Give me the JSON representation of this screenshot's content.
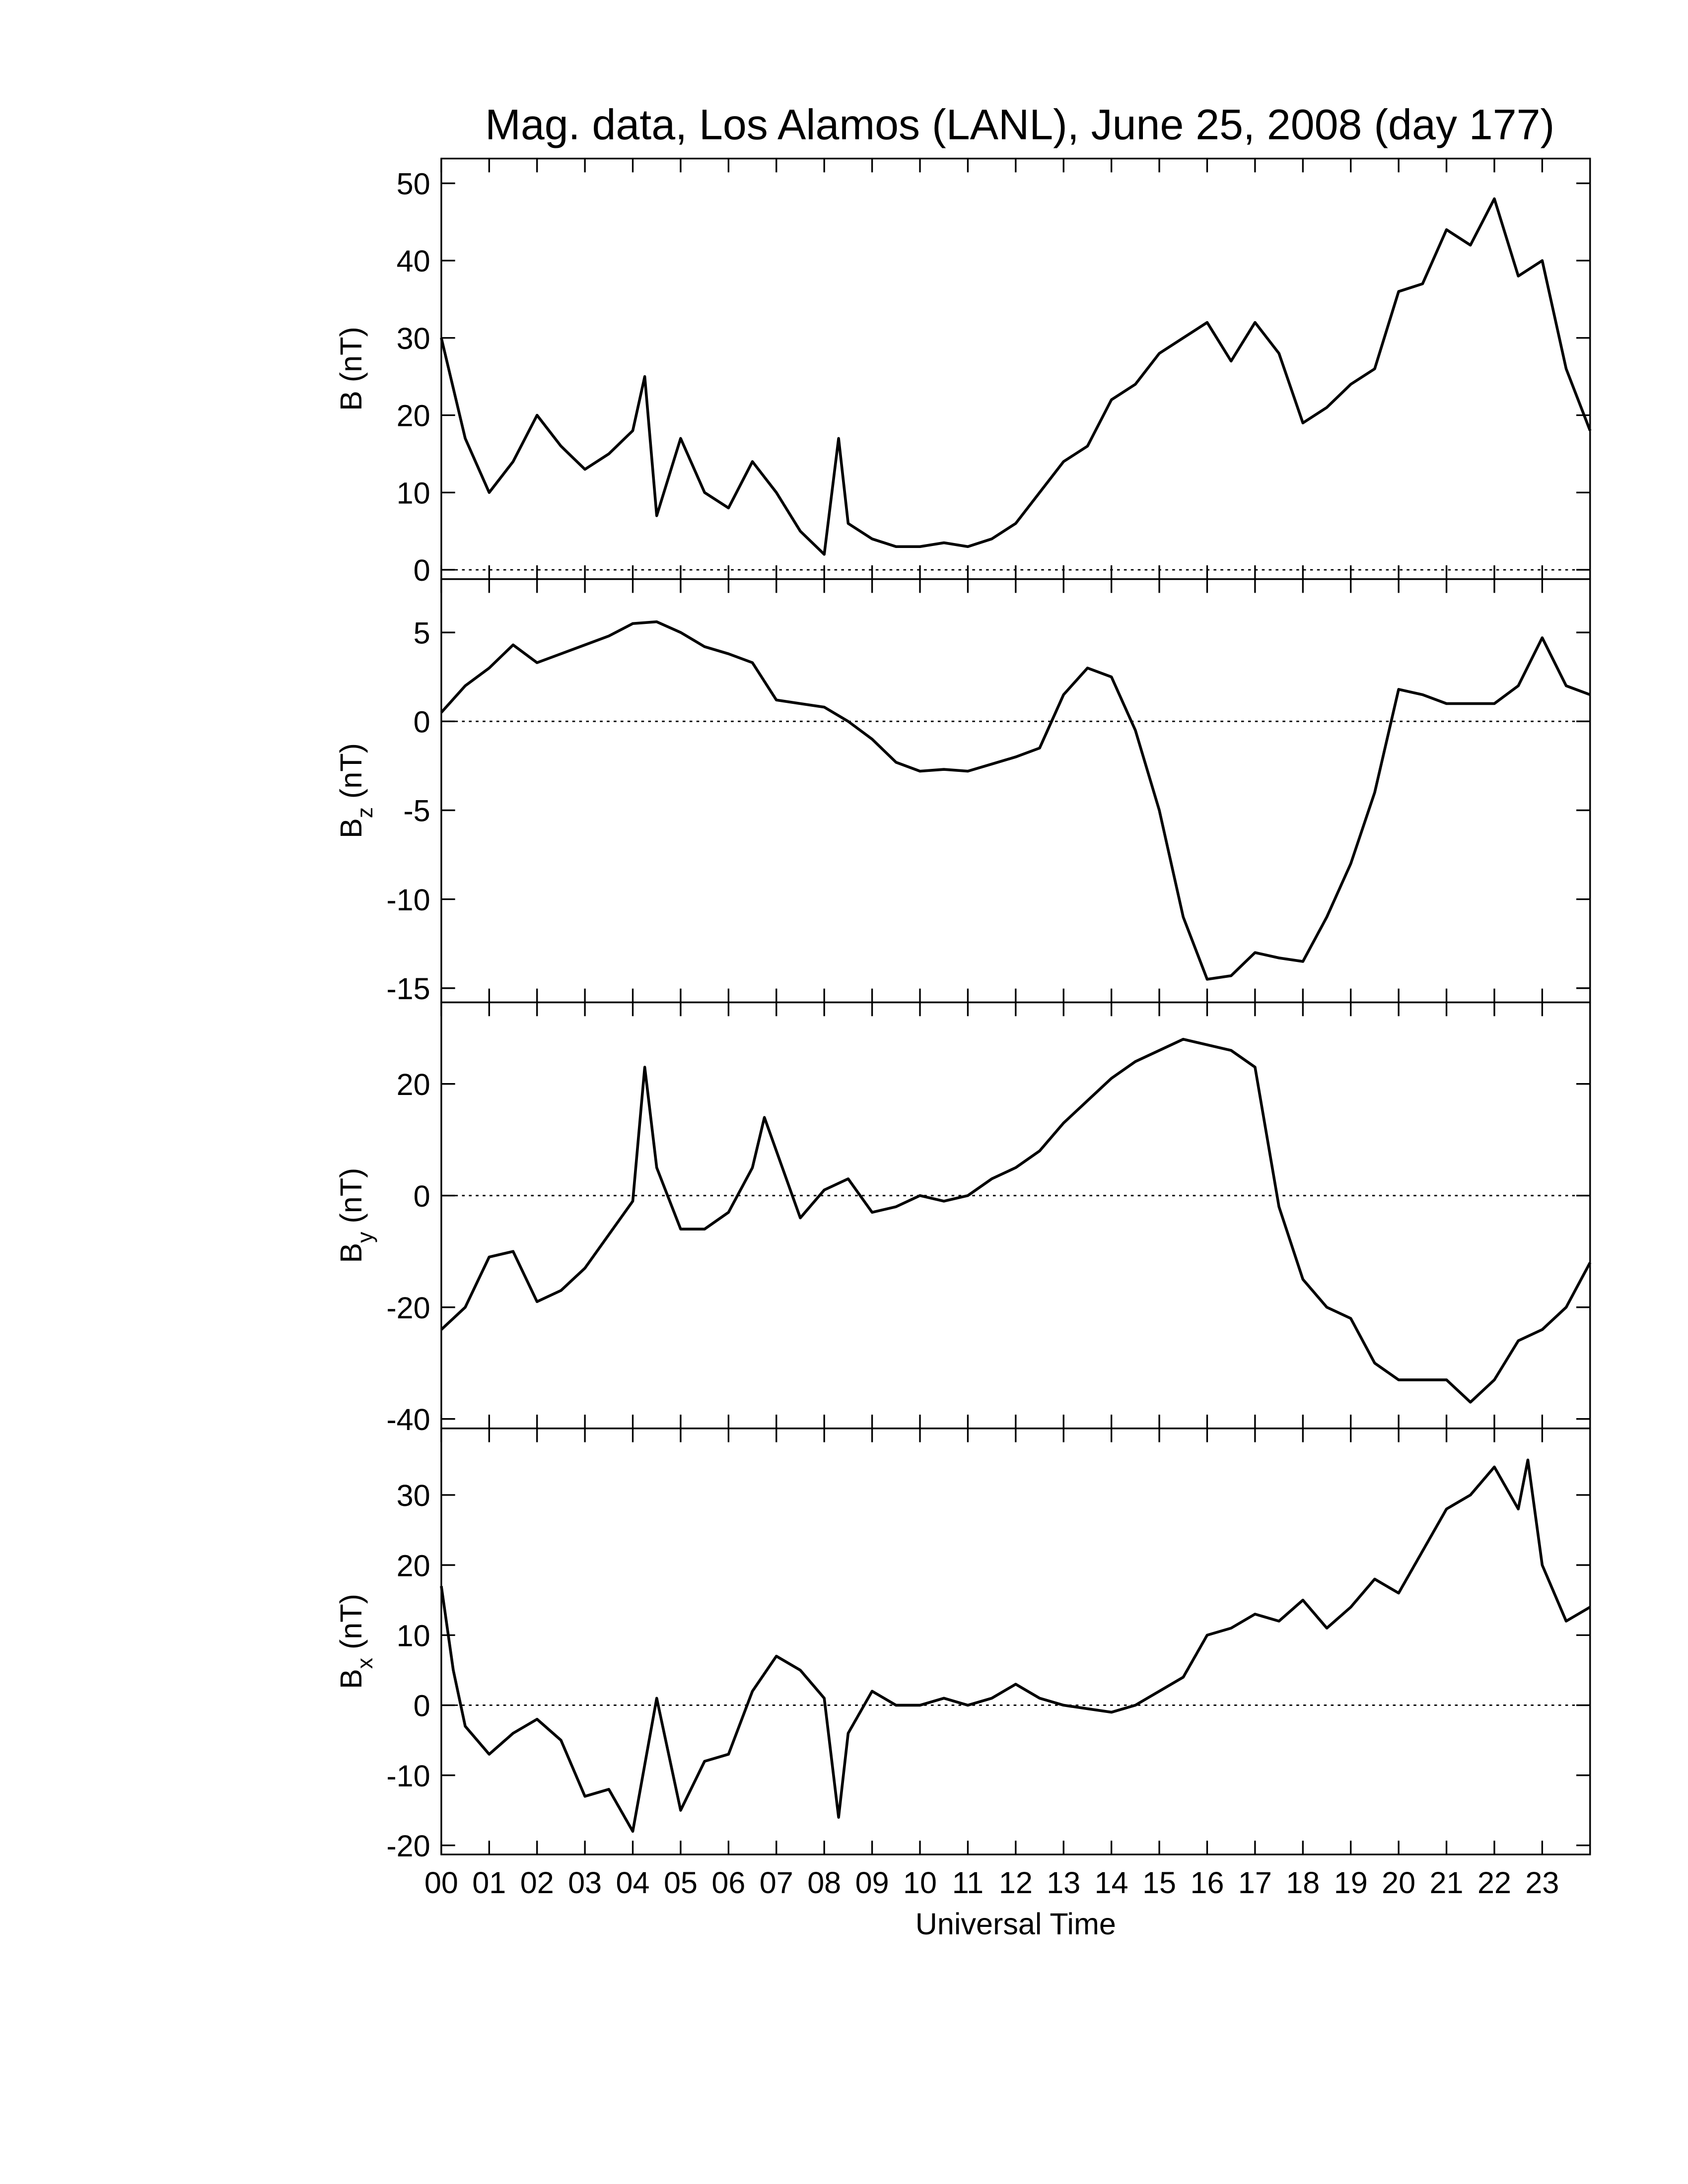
{
  "chart_data": [
    {
      "type": "line",
      "title": "Mag. data, Los Alamos (LANL), June 25, 2008 (day 177)",
      "ylabel": {
        "symbol": "B",
        "unit": "(nT)"
      },
      "x": [
        0,
        0.5,
        1,
        1.5,
        2,
        2.5,
        3,
        3.5,
        4,
        4.25,
        4.5,
        5,
        5.5,
        6,
        6.5,
        7,
        7.5,
        8,
        8.3,
        8.5,
        9,
        9.5,
        10,
        10.5,
        11,
        11.5,
        12,
        12.5,
        13,
        13.5,
        14,
        14.5,
        15,
        15.5,
        16,
        16.5,
        17,
        17.5,
        18,
        18.5,
        19,
        19.5,
        20,
        20.5,
        21,
        21.5,
        22,
        22.5,
        23,
        23.5,
        24
      ],
      "values": [
        30,
        17,
        10,
        14,
        20,
        16,
        13,
        15,
        18,
        25,
        7,
        17,
        10,
        8,
        14,
        10,
        5,
        2,
        17,
        6,
        4,
        3,
        3,
        3.5,
        3,
        4,
        6,
        10,
        14,
        16,
        22,
        24,
        28,
        30,
        32,
        27,
        32,
        28,
        19,
        21,
        24,
        26,
        36,
        37,
        44,
        42,
        48,
        38,
        40,
        26,
        18
      ],
      "color": "#000000",
      "xlim": [
        0,
        24
      ],
      "ylim": [
        -1.2,
        53.2
      ],
      "yticks": [
        0,
        10,
        20,
        30,
        40,
        50
      ],
      "xticks": [
        0,
        1,
        2,
        3,
        4,
        5,
        6,
        7,
        8,
        9,
        10,
        11,
        12,
        13,
        14,
        15,
        16,
        17,
        18,
        19,
        20,
        21,
        22,
        23
      ],
      "hlines": [
        0
      ]
    },
    {
      "type": "line",
      "ylabel": {
        "symbol": "B",
        "subscript": "z",
        "unit": "(nT)"
      },
      "x": [
        0,
        0.5,
        1,
        1.5,
        2,
        2.5,
        3,
        3.5,
        4,
        4.5,
        5,
        5.5,
        6,
        6.5,
        7,
        7.5,
        8,
        8.5,
        9,
        9.5,
        10,
        10.5,
        11,
        11.5,
        12,
        12.5,
        13,
        13.5,
        14,
        14.5,
        15,
        15.5,
        16,
        16.5,
        17,
        17.5,
        18,
        18.5,
        19,
        19.5,
        20,
        20.5,
        21,
        21.5,
        22,
        22.5,
        23,
        23.5,
        24
      ],
      "values": [
        0.5,
        2,
        3,
        4.3,
        3.3,
        3.8,
        4.3,
        4.8,
        5.5,
        5.6,
        5,
        4.2,
        3.8,
        3.3,
        1.2,
        1,
        0.8,
        0,
        -1,
        -2.3,
        -2.8,
        -2.7,
        -2.8,
        -2.4,
        -2,
        -1.5,
        1.5,
        3,
        2.5,
        -0.5,
        -5,
        -11,
        -14.5,
        -14.3,
        -13,
        -13.3,
        -13.5,
        -11,
        -8,
        -4,
        1.8,
        1.5,
        1,
        1,
        1,
        2,
        4.7,
        2,
        1.5
      ],
      "color": "#000000",
      "xlim": [
        0,
        24
      ],
      "ylim": [
        -15.8,
        8.0
      ],
      "yticks": [
        -15,
        -10,
        -5,
        0,
        5
      ],
      "xticks": [
        0,
        1,
        2,
        3,
        4,
        5,
        6,
        7,
        8,
        9,
        10,
        11,
        12,
        13,
        14,
        15,
        16,
        17,
        18,
        19,
        20,
        21,
        22,
        23
      ],
      "hlines": [
        0
      ]
    },
    {
      "type": "line",
      "ylabel": {
        "symbol": "B",
        "subscript": "y",
        "unit": "(nT)"
      },
      "x": [
        0,
        0.5,
        1,
        1.5,
        2,
        2.5,
        3,
        3.5,
        4,
        4.25,
        4.5,
        5,
        5.5,
        6,
        6.5,
        6.75,
        7,
        7.5,
        8,
        8.5,
        9,
        9.5,
        10,
        10.5,
        11,
        11.5,
        12,
        12.5,
        13,
        13.5,
        14,
        14.5,
        15,
        15.5,
        16,
        16.5,
        17,
        17.5,
        18,
        18.5,
        19,
        19.5,
        20,
        20.5,
        21,
        21.5,
        22,
        22.5,
        23,
        23.5,
        24
      ],
      "values": [
        -24,
        -20,
        -11,
        -10,
        -19,
        -17,
        -13,
        -7,
        -1,
        23,
        5,
        -6,
        -6,
        -3,
        5,
        14,
        8,
        -4,
        1,
        3,
        -3,
        -2,
        0,
        -1,
        0,
        3,
        5,
        8,
        13,
        17,
        21,
        24,
        26,
        28,
        27,
        26,
        23,
        -2,
        -15,
        -20,
        -22,
        -30,
        -33,
        -33,
        -33,
        -37,
        -33,
        -26,
        -24,
        -20,
        -12
      ],
      "color": "#000000",
      "xlim": [
        0,
        24
      ],
      "ylim": [
        -41.7,
        34.6
      ],
      "yticks": [
        -40,
        -20,
        0,
        20
      ],
      "xticks": [
        0,
        1,
        2,
        3,
        4,
        5,
        6,
        7,
        8,
        9,
        10,
        11,
        12,
        13,
        14,
        15,
        16,
        17,
        18,
        19,
        20,
        21,
        22,
        23
      ],
      "hlines": [
        0
      ]
    },
    {
      "type": "line",
      "xlabel": "Universal Time",
      "ylabel": {
        "symbol": "B",
        "subscript": "x",
        "unit": "(nT)"
      },
      "x": [
        0,
        0.25,
        0.5,
        1,
        1.5,
        2,
        2.5,
        3,
        3.5,
        4,
        4.5,
        5,
        5.5,
        6,
        6.5,
        7,
        7.5,
        8,
        8.3,
        8.5,
        9,
        9.5,
        10,
        10.5,
        11,
        11.5,
        12,
        12.5,
        13,
        13.5,
        14,
        14.5,
        15,
        15.5,
        16,
        16.5,
        17,
        17.5,
        18,
        18.5,
        19,
        19.5,
        20,
        20.5,
        21,
        21.5,
        22,
        22.5,
        22.7,
        23,
        23.5,
        24
      ],
      "values": [
        17,
        5,
        -3,
        -7,
        -4,
        -2,
        -5,
        -13,
        -12,
        -18,
        1,
        -15,
        -8,
        -7,
        2,
        7,
        5,
        1,
        -16,
        -4,
        2,
        0,
        0,
        1,
        0,
        1,
        3,
        1,
        0,
        -0.5,
        -1,
        0,
        2,
        4,
        10,
        11,
        13,
        12,
        15,
        11,
        14,
        18,
        16,
        22,
        28,
        30,
        34,
        28,
        35,
        20,
        12,
        14
      ],
      "color": "#000000",
      "xlim": [
        0,
        24
      ],
      "ylim": [
        -21.3,
        39.5
      ],
      "yticks": [
        -20,
        -10,
        0,
        10,
        20,
        30
      ],
      "xticks": [
        {
          "value": 0,
          "label": "00"
        },
        {
          "value": 1,
          "label": "01"
        },
        {
          "value": 2,
          "label": "02"
        },
        {
          "value": 3,
          "label": "03"
        },
        {
          "value": 4,
          "label": "04"
        },
        {
          "value": 5,
          "label": "05"
        },
        {
          "value": 6,
          "label": "06"
        },
        {
          "value": 7,
          "label": "07"
        },
        {
          "value": 8,
          "label": "08"
        },
        {
          "value": 9,
          "label": "09"
        },
        {
          "value": 10,
          "label": "10"
        },
        {
          "value": 11,
          "label": "11"
        },
        {
          "value": 12,
          "label": "12"
        },
        {
          "value": 13,
          "label": "13"
        },
        {
          "value": 14,
          "label": "14"
        },
        {
          "value": 15,
          "label": "15"
        },
        {
          "value": 16,
          "label": "16"
        },
        {
          "value": 17,
          "label": "17"
        },
        {
          "value": 18,
          "label": "18"
        },
        {
          "value": 19,
          "label": "19"
        },
        {
          "value": 20,
          "label": "20"
        },
        {
          "value": 21,
          "label": "21"
        },
        {
          "value": 22,
          "label": "22"
        },
        {
          "value": 23,
          "label": "23"
        }
      ],
      "hlines": [
        0
      ]
    }
  ]
}
